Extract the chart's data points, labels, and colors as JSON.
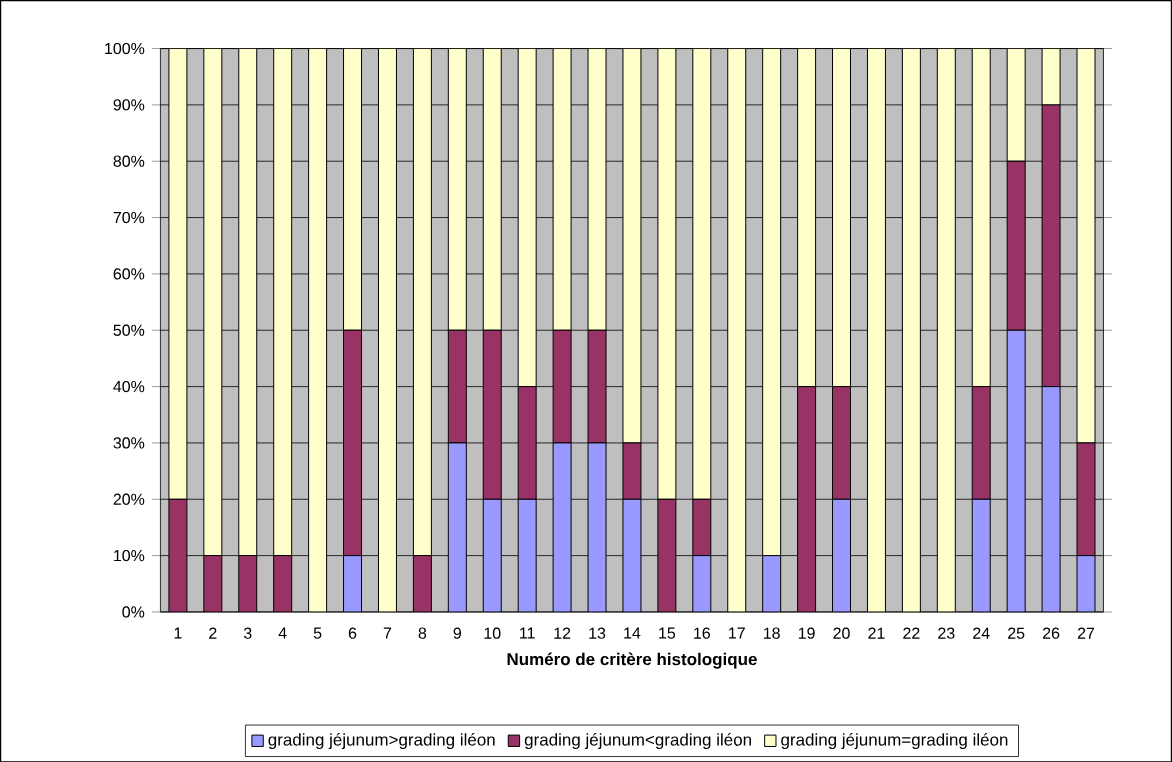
{
  "chart_data": {
    "type": "bar",
    "stacked": true,
    "xlabel": "Numéro de critère histologique",
    "categories": [
      "1",
      "2",
      "3",
      "4",
      "5",
      "6",
      "7",
      "8",
      "9",
      "10",
      "11",
      "12",
      "13",
      "14",
      "15",
      "16",
      "17",
      "18",
      "19",
      "20",
      "21",
      "22",
      "23",
      "24",
      "25",
      "26",
      "27"
    ],
    "series": [
      {
        "name": "grading jéjunum>grading iléon",
        "color": "#9999ff",
        "values": [
          0,
          0,
          0,
          0,
          0,
          10,
          0,
          0,
          30,
          20,
          20,
          30,
          30,
          20,
          0,
          10,
          0,
          10,
          0,
          20,
          0,
          0,
          0,
          20,
          50,
          40,
          10
        ]
      },
      {
        "name": "grading jéjunum<grading iléon",
        "color": "#993366",
        "values": [
          20,
          10,
          10,
          10,
          0,
          40,
          0,
          10,
          20,
          30,
          20,
          20,
          20,
          10,
          20,
          10,
          0,
          0,
          40,
          20,
          0,
          0,
          0,
          20,
          30,
          50,
          20
        ]
      },
      {
        "name": "grading jéjunum=grading iléon",
        "color": "#ffffcc",
        "values": [
          80,
          90,
          90,
          90,
          100,
          50,
          100,
          90,
          50,
          50,
          60,
          50,
          50,
          70,
          80,
          80,
          100,
          90,
          60,
          60,
          100,
          100,
          100,
          60,
          20,
          10,
          70
        ]
      }
    ],
    "ylim": [
      0,
      100
    ],
    "yticks": [
      {
        "value": 0,
        "label": "0%"
      },
      {
        "value": 10,
        "label": "10%"
      },
      {
        "value": 20,
        "label": "20%"
      },
      {
        "value": 30,
        "label": "30%"
      },
      {
        "value": 40,
        "label": "40%"
      },
      {
        "value": 50,
        "label": "50%"
      },
      {
        "value": 60,
        "label": "60%"
      },
      {
        "value": 70,
        "label": "70%"
      },
      {
        "value": 80,
        "label": "80%"
      },
      {
        "value": 90,
        "label": "90%"
      },
      {
        "value": 100,
        "label": "100%"
      }
    ],
    "grid": "y",
    "legend": "bottom"
  }
}
